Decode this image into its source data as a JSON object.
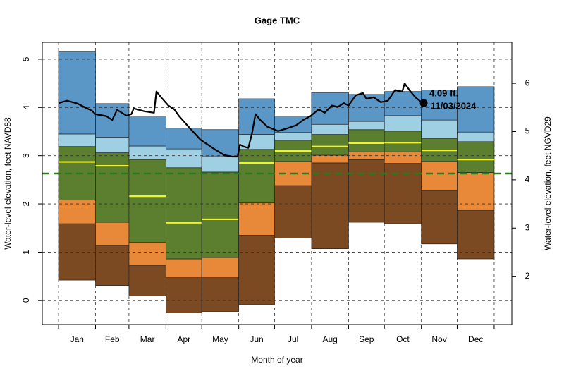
{
  "chart_data": {
    "type": "percentile-bands",
    "title": "Gage TMC",
    "x_label": "Month of year",
    "y_label": "Water-level elevation, feet NAVD88",
    "y2_label": "Water-level elevation, feet NGVD29",
    "xlim": [
      -13.6,
      379.8
    ],
    "xticks": [
      {
        "value": 15.5,
        "label": "Jan"
      },
      {
        "value": 45,
        "label": "Feb"
      },
      {
        "value": 74.5,
        "label": "Mar"
      },
      {
        "value": 105,
        "label": "Apr"
      },
      {
        "value": 135.5,
        "label": "May"
      },
      {
        "value": 166,
        "label": "Jun"
      },
      {
        "value": 196.5,
        "label": "Jul"
      },
      {
        "value": 227.5,
        "label": "Aug"
      },
      {
        "value": 258,
        "label": "Sep"
      },
      {
        "value": 288.5,
        "label": "Oct"
      },
      {
        "value": 319,
        "label": "Nov"
      },
      {
        "value": 349.5,
        "label": "Dec"
      }
    ],
    "month_edges": [
      0,
      31,
      59,
      90,
      120,
      151,
      181,
      212,
      243,
      273,
      304,
      334,
      365
    ],
    "ylim": [
      -0.5,
      5.35
    ],
    "yticks": [
      0,
      1,
      2,
      3,
      4,
      5
    ],
    "y2lim": [
      1.0,
      6.85
    ],
    "y2ticks": [
      2,
      3,
      4,
      5,
      6
    ],
    "grid": true,
    "band_colors": [
      "#7b4a23",
      "#e8893a",
      "#5b7f2f",
      "#9fcfe3",
      "#5b97c6"
    ],
    "levels": [
      [
        0.42,
        0.31,
        0.09,
        -0.26,
        -0.23,
        -0.09,
        1.29,
        1.07,
        1.62,
        1.59,
        1.17,
        0.86
      ],
      [
        1.59,
        1.14,
        0.72,
        0.47,
        0.47,
        1.35,
        2.38,
        2.85,
        2.92,
        2.84,
        2.28,
        1.87
      ],
      [
        2.08,
        1.62,
        1.2,
        0.86,
        0.89,
        2.02,
        2.88,
        3.01,
        3.08,
        3.08,
        2.88,
        2.65
      ],
      [
        3.19,
        3.06,
        2.92,
        2.75,
        2.66,
        3.13,
        3.32,
        3.44,
        3.54,
        3.51,
        3.36,
        3.29
      ],
      [
        3.45,
        3.38,
        3.2,
        3.14,
        2.98,
        3.44,
        3.48,
        3.65,
        3.71,
        3.83,
        3.74,
        3.49
      ],
      [
        5.16,
        4.08,
        3.82,
        3.57,
        3.54,
        4.18,
        3.82,
        4.31,
        4.27,
        4.33,
        4.36,
        4.43
      ]
    ],
    "median": {
      "color": "#f2f22a",
      "values": [
        2.87,
        2.79,
        2.16,
        1.61,
        1.68,
        2.85,
        3.1,
        3.19,
        3.26,
        3.27,
        3.11,
        2.92
      ]
    },
    "reference_line": {
      "color": "#2a7a1a",
      "value": 2.63
    },
    "series": [
      {
        "color": "#000000",
        "x": [
          0,
          7,
          16,
          28,
          31,
          40,
          45,
          49,
          57,
          61,
          63,
          72,
          80,
          82,
          86,
          92,
          97,
          101,
          110,
          119,
          131,
          139,
          146,
          150,
          152,
          155,
          159,
          162,
          165,
          169,
          175,
          184,
          192,
          199,
          205,
          211,
          218,
          223,
          229,
          234,
          239,
          243,
          249,
          255,
          258,
          264,
          270,
          276,
          282,
          288,
          290,
          294,
          299,
          304,
          306
        ],
        "values": [
          4.09,
          4.14,
          4.08,
          3.93,
          3.86,
          3.82,
          3.74,
          3.95,
          3.83,
          3.86,
          3.98,
          3.92,
          3.89,
          4.33,
          4.21,
          4.04,
          3.96,
          3.82,
          3.57,
          3.33,
          3.13,
          3.01,
          2.98,
          2.98,
          3.23,
          3.19,
          3.16,
          3.45,
          3.86,
          3.74,
          3.6,
          3.51,
          3.57,
          3.63,
          3.74,
          3.82,
          3.96,
          3.89,
          4.04,
          4.01,
          4.09,
          4.04,
          4.25,
          4.3,
          4.18,
          4.21,
          4.11,
          4.14,
          4.36,
          4.33,
          4.5,
          4.36,
          4.21,
          4.11,
          4.09
        ]
      }
    ],
    "last_point": {
      "x": 306,
      "value": 4.09,
      "value_label": "4.09 ft.",
      "date_label": "11/03/2024"
    }
  }
}
